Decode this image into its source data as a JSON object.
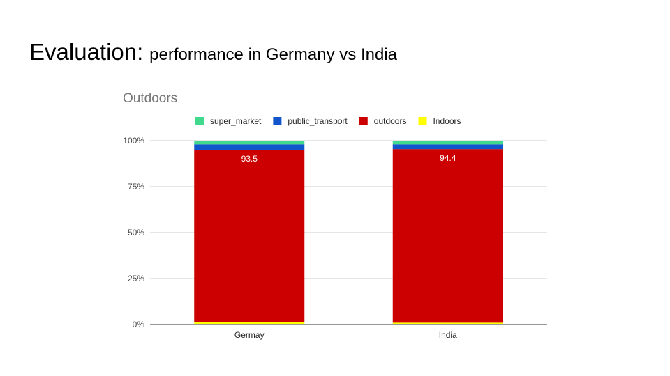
{
  "slide": {
    "title_main": "Evaluation:",
    "title_sub": "performance in Germany vs India"
  },
  "chart_data": {
    "type": "bar",
    "stacked": true,
    "normalized": true,
    "title": "Outdoors",
    "xlabel": "",
    "ylabel": "",
    "categories": [
      "Germay",
      "India"
    ],
    "yticks": [
      "0%",
      "25%",
      "50%",
      "75%",
      "100%"
    ],
    "ylim": [
      0,
      100
    ],
    "grid": true,
    "legend_position": "top",
    "series": [
      {
        "name": "Indoors",
        "color": "#ffff00",
        "values": [
          1.5,
          1.0
        ]
      },
      {
        "name": "outdoors",
        "color": "#cc0000",
        "values": [
          93.5,
          94.4
        ]
      },
      {
        "name": "public_transport",
        "color": "#1155cc",
        "values": [
          3.0,
          2.6
        ]
      },
      {
        "name": "super_market",
        "color": "#41d98e",
        "values": [
          2.0,
          2.0
        ]
      }
    ],
    "data_labels": [
      {
        "series": "outdoors",
        "category": "Germay",
        "text": "93.5"
      },
      {
        "series": "outdoors",
        "category": "India",
        "text": "94.4"
      }
    ],
    "legend_order": [
      "super_market",
      "public_transport",
      "outdoors",
      "Indoors"
    ]
  }
}
